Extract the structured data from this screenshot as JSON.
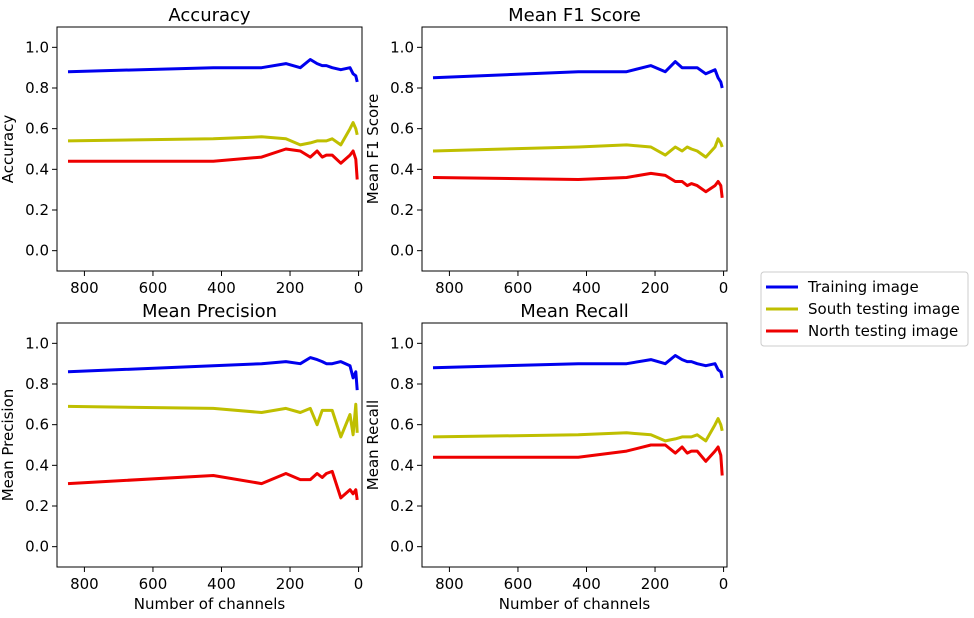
{
  "chart_data": [
    {
      "type": "line",
      "title": "Accuracy",
      "xlabel": "",
      "ylabel": "Accuracy",
      "xlim": [
        880,
        -10
      ],
      "ylim": [
        -0.1,
        1.1
      ],
      "x_ticks": [
        800,
        600,
        400,
        200,
        0
      ],
      "y_ticks": [
        0.0,
        0.2,
        0.4,
        0.6,
        0.8,
        1.0
      ],
      "grid": false,
      "series": [
        {
          "name": "Training image",
          "color": "#0000ee",
          "x": [
            848,
            424,
            283,
            212,
            170,
            141,
            121,
            106,
            94,
            77,
            52,
            25,
            16,
            8,
            4
          ],
          "y": [
            0.88,
            0.9,
            0.9,
            0.92,
            0.9,
            0.94,
            0.92,
            0.91,
            0.91,
            0.9,
            0.89,
            0.9,
            0.87,
            0.86,
            0.83
          ]
        },
        {
          "name": "South testing image",
          "color": "#bfbf00",
          "x": [
            848,
            424,
            283,
            212,
            170,
            141,
            121,
            106,
            94,
            77,
            52,
            25,
            16,
            8,
            4
          ],
          "y": [
            0.54,
            0.55,
            0.56,
            0.55,
            0.52,
            0.53,
            0.54,
            0.54,
            0.54,
            0.55,
            0.52,
            0.6,
            0.63,
            0.6,
            0.57
          ]
        },
        {
          "name": "North testing image",
          "color": "#ee0000",
          "x": [
            848,
            424,
            283,
            212,
            170,
            141,
            121,
            106,
            94,
            77,
            52,
            25,
            16,
            8,
            4
          ],
          "y": [
            0.44,
            0.44,
            0.46,
            0.5,
            0.49,
            0.46,
            0.49,
            0.46,
            0.47,
            0.47,
            0.43,
            0.47,
            0.49,
            0.45,
            0.35
          ]
        }
      ]
    },
    {
      "type": "line",
      "title": "Mean F1 Score",
      "xlabel": "",
      "ylabel": "Mean F1 Score",
      "xlim": [
        880,
        -10
      ],
      "ylim": [
        -0.1,
        1.1
      ],
      "x_ticks": [
        800,
        600,
        400,
        200,
        0
      ],
      "y_ticks": [
        0.0,
        0.2,
        0.4,
        0.6,
        0.8,
        1.0
      ],
      "grid": false,
      "series": [
        {
          "name": "Training image",
          "color": "#0000ee",
          "x": [
            848,
            424,
            283,
            212,
            170,
            141,
            121,
            106,
            94,
            77,
            52,
            25,
            16,
            8,
            4
          ],
          "y": [
            0.85,
            0.88,
            0.88,
            0.91,
            0.88,
            0.93,
            0.9,
            0.9,
            0.9,
            0.9,
            0.87,
            0.89,
            0.85,
            0.83,
            0.8
          ]
        },
        {
          "name": "South testing image",
          "color": "#bfbf00",
          "x": [
            848,
            424,
            283,
            212,
            170,
            141,
            121,
            106,
            94,
            77,
            52,
            25,
            16,
            8,
            4
          ],
          "y": [
            0.49,
            0.51,
            0.52,
            0.51,
            0.47,
            0.51,
            0.49,
            0.51,
            0.5,
            0.49,
            0.46,
            0.51,
            0.55,
            0.53,
            0.51
          ]
        },
        {
          "name": "North testing image",
          "color": "#ee0000",
          "x": [
            848,
            424,
            283,
            212,
            170,
            141,
            121,
            106,
            94,
            77,
            52,
            25,
            16,
            8,
            4
          ],
          "y": [
            0.36,
            0.35,
            0.36,
            0.38,
            0.37,
            0.34,
            0.34,
            0.32,
            0.33,
            0.32,
            0.29,
            0.32,
            0.34,
            0.32,
            0.26
          ]
        }
      ]
    },
    {
      "type": "line",
      "title": "Mean Precision",
      "xlabel": "Number of channels",
      "ylabel": "Mean Precision",
      "xlim": [
        880,
        -10
      ],
      "ylim": [
        -0.1,
        1.1
      ],
      "x_ticks": [
        800,
        600,
        400,
        200,
        0
      ],
      "y_ticks": [
        0.0,
        0.2,
        0.4,
        0.6,
        0.8,
        1.0
      ],
      "grid": false,
      "series": [
        {
          "name": "Training image",
          "color": "#0000ee",
          "x": [
            848,
            424,
            283,
            212,
            170,
            141,
            121,
            106,
            94,
            77,
            52,
            25,
            16,
            8,
            4
          ],
          "y": [
            0.86,
            0.89,
            0.9,
            0.91,
            0.9,
            0.93,
            0.92,
            0.91,
            0.9,
            0.9,
            0.91,
            0.89,
            0.83,
            0.86,
            0.77
          ]
        },
        {
          "name": "South testing image",
          "color": "#bfbf00",
          "x": [
            848,
            424,
            283,
            212,
            170,
            141,
            121,
            106,
            94,
            77,
            52,
            25,
            16,
            8,
            4
          ],
          "y": [
            0.69,
            0.68,
            0.66,
            0.68,
            0.66,
            0.68,
            0.6,
            0.67,
            0.67,
            0.67,
            0.54,
            0.65,
            0.55,
            0.7,
            0.56
          ]
        },
        {
          "name": "North testing image",
          "color": "#ee0000",
          "x": [
            848,
            424,
            283,
            212,
            170,
            141,
            121,
            106,
            94,
            77,
            52,
            25,
            16,
            8,
            4
          ],
          "y": [
            0.31,
            0.35,
            0.31,
            0.36,
            0.33,
            0.33,
            0.36,
            0.34,
            0.36,
            0.37,
            0.24,
            0.28,
            0.26,
            0.28,
            0.23
          ]
        }
      ]
    },
    {
      "type": "line",
      "title": "Mean Recall",
      "xlabel": "Number of channels",
      "ylabel": "Mean Recall",
      "xlim": [
        880,
        -10
      ],
      "ylim": [
        -0.1,
        1.1
      ],
      "x_ticks": [
        800,
        600,
        400,
        200,
        0
      ],
      "y_ticks": [
        0.0,
        0.2,
        0.4,
        0.6,
        0.8,
        1.0
      ],
      "grid": false,
      "series": [
        {
          "name": "Training image",
          "color": "#0000ee",
          "x": [
            848,
            424,
            283,
            212,
            170,
            141,
            121,
            106,
            94,
            77,
            52,
            25,
            16,
            8,
            4
          ],
          "y": [
            0.88,
            0.9,
            0.9,
            0.92,
            0.9,
            0.94,
            0.92,
            0.91,
            0.91,
            0.9,
            0.89,
            0.9,
            0.87,
            0.86,
            0.83
          ]
        },
        {
          "name": "South testing image",
          "color": "#bfbf00",
          "x": [
            848,
            424,
            283,
            212,
            170,
            141,
            121,
            106,
            94,
            77,
            52,
            25,
            16,
            8,
            4
          ],
          "y": [
            0.54,
            0.55,
            0.56,
            0.55,
            0.52,
            0.53,
            0.54,
            0.54,
            0.54,
            0.55,
            0.52,
            0.6,
            0.63,
            0.6,
            0.57
          ]
        },
        {
          "name": "North testing image",
          "color": "#ee0000",
          "x": [
            848,
            424,
            283,
            212,
            170,
            141,
            121,
            106,
            94,
            77,
            52,
            25,
            16,
            8,
            4
          ],
          "y": [
            0.44,
            0.44,
            0.47,
            0.5,
            0.5,
            0.46,
            0.49,
            0.46,
            0.47,
            0.47,
            0.42,
            0.47,
            0.49,
            0.45,
            0.35
          ]
        }
      ]
    }
  ],
  "legend": {
    "placement": "right",
    "entries": [
      {
        "label": "Training image",
        "color": "#0000ee"
      },
      {
        "label": "South testing image",
        "color": "#bfbf00"
      },
      {
        "label": "North testing image",
        "color": "#ee0000"
      }
    ]
  }
}
